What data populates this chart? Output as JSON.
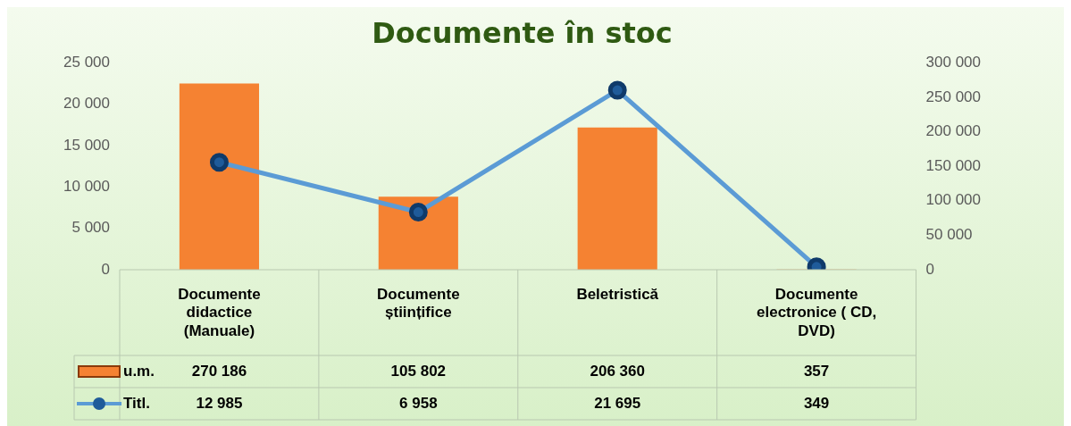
{
  "chart_data": {
    "type": "bar",
    "title": "Documente în stoc",
    "categories": [
      "Documente didactice (Manuale)",
      "Documente științifice",
      "Beletristică",
      "Documente electronice ( CD, DVD)"
    ],
    "series": [
      {
        "name": "u.m.",
        "axis": "y2",
        "color": "#f58232",
        "values": [
          270186,
          105802,
          206360,
          357
        ],
        "value_labels": [
          "270 186",
          "105 802",
          "206 360",
          "357"
        ]
      },
      {
        "name": "Titl.",
        "type": "line",
        "axis": "y",
        "color": "#5b9bd5",
        "values": [
          12985,
          6958,
          21695,
          349
        ],
        "value_labels": [
          "12 985",
          "6 958",
          "21 695",
          "349"
        ]
      }
    ],
    "ylim": [
      0,
      25000
    ],
    "yticks": [
      0,
      {
        "value": 5000,
        "label": "5 000"
      },
      {
        "value": 10000,
        "label": "10 000"
      },
      {
        "value": 15000,
        "label": "15 000"
      },
      {
        "value": 20000,
        "label": "20 000"
      },
      {
        "value": 25000,
        "label": "25 000"
      }
    ],
    "y2lim": [
      0,
      300000
    ],
    "y2ticks": [
      0,
      {
        "value": 50000,
        "label": "50 000"
      },
      {
        "value": 100000,
        "label": "100 000"
      },
      {
        "value": 150000,
        "label": "150 000"
      },
      {
        "value": 200000,
        "label": "200 000"
      },
      {
        "value": 250000,
        "label": "250 000"
      },
      {
        "value": 300000,
        "label": "300 000"
      }
    ],
    "marker": "circle",
    "grid": false,
    "legend": "bottom left"
  }
}
